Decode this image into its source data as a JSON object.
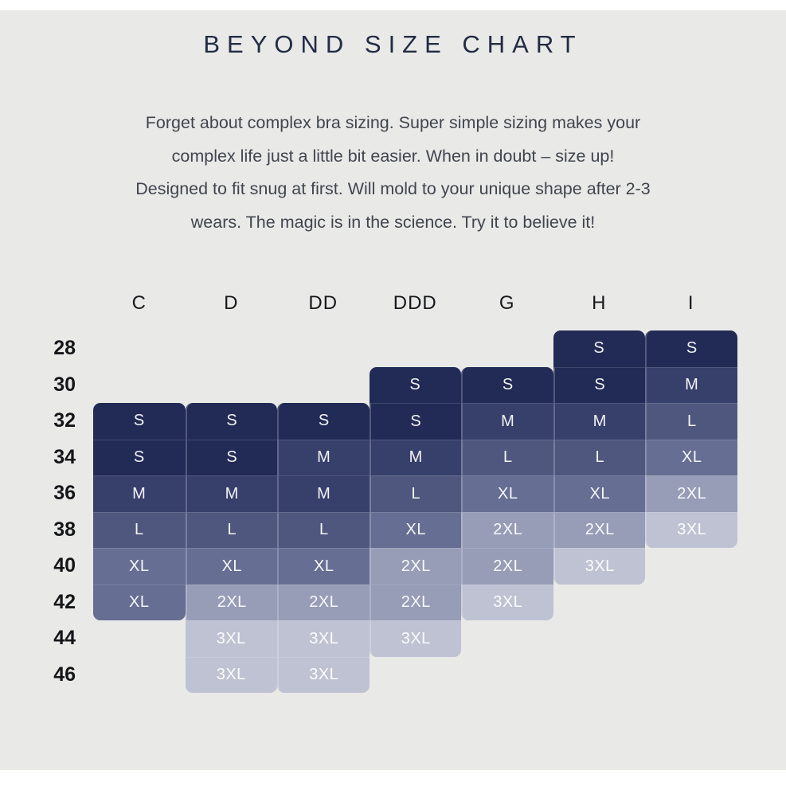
{
  "page": {
    "title": "BEYOND SIZE CHART",
    "intro_lines": [
      "Forget about complex bra sizing. Super simple sizing makes your",
      "complex life just a little bit easier. When in doubt – size up!",
      "Designed to fit snug at first. Will mold to your unique shape after 2-3",
      "wears. The magic is in the science. Try it to believe it!"
    ]
  },
  "colors": {
    "page_background": "#ffffff",
    "panel_background": "#e9e9e7",
    "title_text": "#232c44",
    "body_text": "#40454e",
    "label_text": "#141619",
    "cell_text": "#f4f5f8",
    "cell_divider": "rgba(255,255,255,0.22)"
  },
  "chart_data": {
    "type": "heatmap",
    "title": "BEYOND SIZE CHART",
    "columns": [
      "C",
      "D",
      "DD",
      "DDD",
      "G",
      "H",
      "I"
    ],
    "rows": [
      "28",
      "30",
      "32",
      "34",
      "36",
      "38",
      "40",
      "42",
      "44",
      "46"
    ],
    "grid": [
      [
        "",
        "",
        "",
        "",
        "",
        "S",
        "S"
      ],
      [
        "",
        "",
        "",
        "S",
        "S",
        "S",
        "M"
      ],
      [
        "S",
        "S",
        "S",
        "S",
        "M",
        "M",
        "L"
      ],
      [
        "S",
        "S",
        "M",
        "M",
        "L",
        "L",
        "XL"
      ],
      [
        "M",
        "M",
        "M",
        "L",
        "XL",
        "XL",
        "2XL"
      ],
      [
        "L",
        "L",
        "L",
        "XL",
        "2XL",
        "2XL",
        "3XL"
      ],
      [
        "XL",
        "XL",
        "XL",
        "2XL",
        "2XL",
        "3XL",
        ""
      ],
      [
        "XL",
        "2XL",
        "2XL",
        "2XL",
        "3XL",
        "",
        ""
      ],
      [
        "",
        "3XL",
        "3XL",
        "3XL",
        "",
        "",
        ""
      ],
      [
        "",
        "3XL",
        "3XL",
        "",
        "",
        "",
        ""
      ]
    ],
    "size_legend": [
      "S",
      "M",
      "L",
      "XL",
      "2XL",
      "3XL"
    ],
    "size_colors": {
      "S": "#222b55",
      "M": "#373f6b",
      "L": "#4f577e",
      "XL": "#666e93",
      "2XL": "#979cb7",
      "3XL": "#bfc2d3"
    }
  }
}
